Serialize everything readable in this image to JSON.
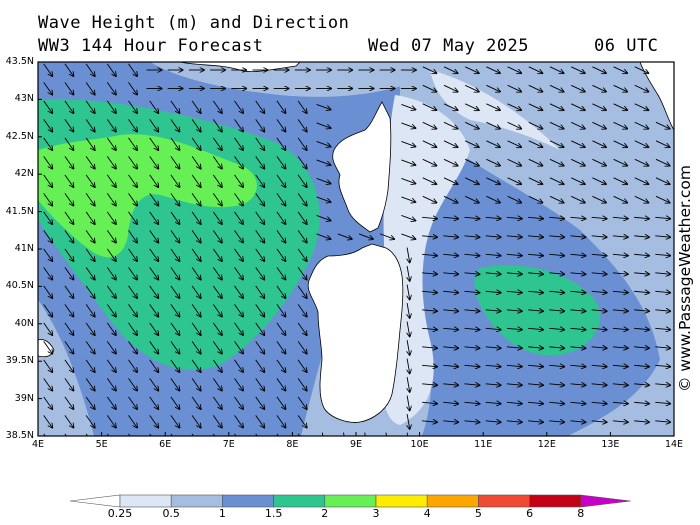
{
  "header": {
    "line1": "Wave Height (m) and Direction",
    "line2": "WW3 144 Hour Forecast",
    "date": "Wed 07 May 2025",
    "time": "06 UTC"
  },
  "credit": "© www.PassageWeather.com",
  "axes": {
    "lat_labels": [
      "43.5N",
      "43N",
      "42.5N",
      "42N",
      "41.5N",
      "41N",
      "40.5N",
      "40N",
      "39.5N",
      "39N",
      "38.5N"
    ],
    "lon_labels": [
      "4E",
      "5E",
      "6E",
      "7E",
      "8E",
      "9E",
      "10E",
      "11E",
      "12E",
      "13E",
      "14E"
    ]
  },
  "legend": {
    "labels": [
      "0.25",
      "0.5",
      "1",
      "1.5",
      "2",
      "3",
      "4",
      "5",
      "6",
      "8"
    ],
    "colors": [
      "#ffffff",
      "#dde6f4",
      "#a5bde0",
      "#6a8fd2",
      "#2fc590",
      "#66f055",
      "#fcec00",
      "#fda600",
      "#f04a34",
      "#c30016",
      "#c800c8"
    ]
  },
  "map": {
    "region": "Western Mediterranean",
    "lon_range": [
      4,
      14
    ],
    "lat_range": [
      38.5,
      43.5
    ],
    "islands": [
      "Corsica",
      "Sardinia"
    ],
    "prevailing_direction": "north-westerly (arrows pointing south-east)",
    "max_wave_height_band": "2-3 m"
  }
}
